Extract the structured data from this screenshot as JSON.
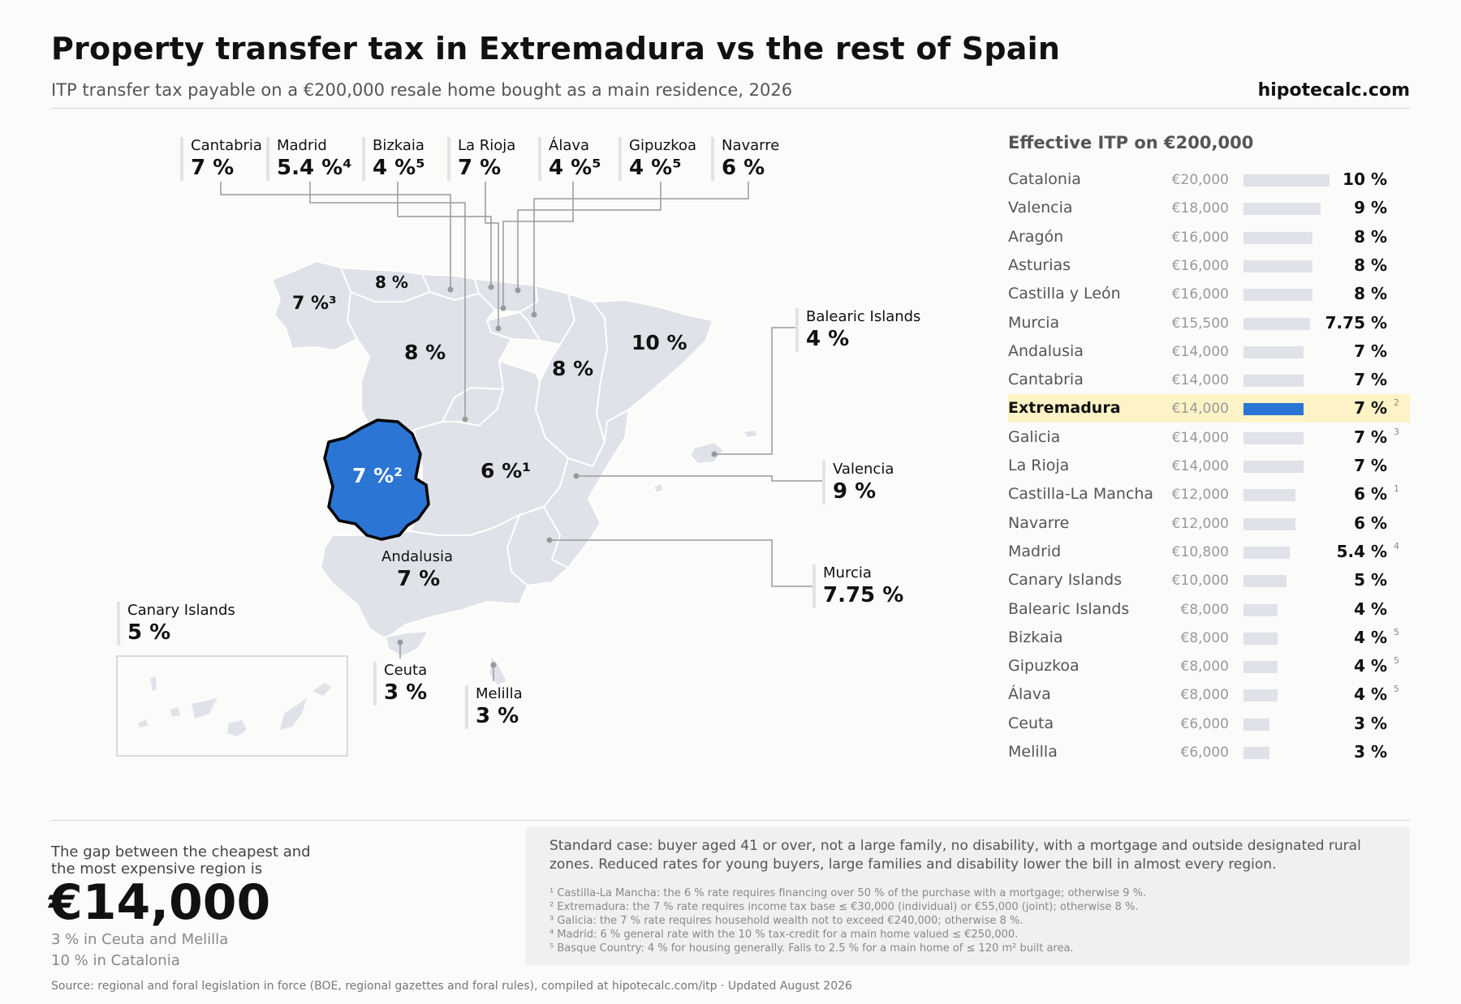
{
  "title": "Property transfer tax in Extremadura vs the rest of Spain",
  "subtitle": "ITP transfer tax payable on a €200,000 resale home bought as a main residence, 2026",
  "brand": "hipotecalc.com",
  "colors": {
    "highlight": "#2b75d4",
    "region": "#dfe2e8",
    "highlight_row": "#fdf3c6"
  },
  "map": {
    "callouts": [
      {
        "name": "Cantabria",
        "value": "7 %"
      },
      {
        "name": "Madrid",
        "value": "5.4 %⁴"
      },
      {
        "name": "Bizkaia",
        "value": "4 %⁵"
      },
      {
        "name": "La Rioja",
        "value": "7 %"
      },
      {
        "name": "Álava",
        "value": "4 %⁵"
      },
      {
        "name": "Gipuzkoa",
        "value": "4 %⁵"
      },
      {
        "name": "Navarre",
        "value": "6 %"
      },
      {
        "name": "Balearic Islands",
        "value": "4 %"
      },
      {
        "name": "Valencia",
        "value": "9 %"
      },
      {
        "name": "Murcia",
        "value": "7.75 %"
      },
      {
        "name": "Andalusia",
        "value": "7 %"
      },
      {
        "name": "Canary Islands",
        "value": "5 %"
      },
      {
        "name": "Ceuta",
        "value": "3 %"
      },
      {
        "name": "Melilla",
        "value": "3 %"
      }
    ],
    "in_map_labels": {
      "asturias": "8 %",
      "galicia": "7 %³",
      "castilla_leon": "8 %",
      "aragon": "8 %",
      "catalonia": "10 %",
      "castilla_la_mancha": "6 %¹",
      "extremadura": "7 %²"
    }
  },
  "ranking": {
    "title": "Effective ITP on €200,000",
    "rows": [
      {
        "region": "Catalonia",
        "amount": "€20,000",
        "rate": "10 %",
        "note": ""
      },
      {
        "region": "Valencia",
        "amount": "€18,000",
        "rate": "9 %",
        "note": ""
      },
      {
        "region": "Aragón",
        "amount": "€16,000",
        "rate": "8 %",
        "note": ""
      },
      {
        "region": "Asturias",
        "amount": "€16,000",
        "rate": "8 %",
        "note": ""
      },
      {
        "region": "Castilla y León",
        "amount": "€16,000",
        "rate": "8 %",
        "note": ""
      },
      {
        "region": "Murcia",
        "amount": "€15,500",
        "rate": "7.75 %",
        "note": ""
      },
      {
        "region": "Andalusia",
        "amount": "€14,000",
        "rate": "7 %",
        "note": ""
      },
      {
        "region": "Cantabria",
        "amount": "€14,000",
        "rate": "7 %",
        "note": ""
      },
      {
        "region": "Extremadura",
        "amount": "€14,000",
        "rate": "7 %",
        "note": "2"
      },
      {
        "region": "Galicia",
        "amount": "€14,000",
        "rate": "7 %",
        "note": "3"
      },
      {
        "region": "La Rioja",
        "amount": "€14,000",
        "rate": "7 %",
        "note": ""
      },
      {
        "region": "Castilla-La Mancha",
        "amount": "€12,000",
        "rate": "6 %",
        "note": "1"
      },
      {
        "region": "Navarre",
        "amount": "€12,000",
        "rate": "6 %",
        "note": ""
      },
      {
        "region": "Madrid",
        "amount": "€10,800",
        "rate": "5.4 %",
        "note": "4"
      },
      {
        "region": "Canary Islands",
        "amount": "€10,000",
        "rate": "5 %",
        "note": ""
      },
      {
        "region": "Balearic Islands",
        "amount": "€8,000",
        "rate": "4 %",
        "note": ""
      },
      {
        "region": "Bizkaia",
        "amount": "€8,000",
        "rate": "4 %",
        "note": "5"
      },
      {
        "region": "Gipuzkoa",
        "amount": "€8,000",
        "rate": "4 %",
        "note": "5"
      },
      {
        "region": "Álava",
        "amount": "€8,000",
        "rate": "4 %",
        "note": "5"
      },
      {
        "region": "Ceuta",
        "amount": "€6,000",
        "rate": "3 %",
        "note": ""
      },
      {
        "region": "Melilla",
        "amount": "€6,000",
        "rate": "3 %",
        "note": ""
      }
    ]
  },
  "chart_data": {
    "type": "bar",
    "title": "Effective ITP on €200,000",
    "highlight": "Extremadura",
    "categories": [
      "Catalonia",
      "Valencia",
      "Aragón",
      "Asturias",
      "Castilla y León",
      "Murcia",
      "Andalusia",
      "Cantabria",
      "Extremadura",
      "Galicia",
      "La Rioja",
      "Castilla-La Mancha",
      "Navarre",
      "Madrid",
      "Canary Islands",
      "Balearic Islands",
      "Bizkaia",
      "Gipuzkoa",
      "Álava",
      "Ceuta",
      "Melilla"
    ],
    "values": [
      20000,
      18000,
      16000,
      16000,
      16000,
      15500,
      14000,
      14000,
      14000,
      14000,
      14000,
      12000,
      12000,
      10800,
      10000,
      8000,
      8000,
      8000,
      8000,
      6000,
      6000
    ],
    "rates": [
      10,
      9,
      8,
      8,
      8,
      7.75,
      7,
      7,
      7,
      7,
      7,
      6,
      6,
      5.4,
      5,
      4,
      4,
      4,
      4,
      3,
      3
    ],
    "orientation": "horizontal"
  },
  "summary": {
    "gap_label": "The gap between the cheapest and the most expensive region is",
    "gap_value": "€14,000",
    "low": "3 % in Ceuta and Melilla",
    "high": "10 % in Catalonia"
  },
  "notes": {
    "main": "Standard case: buyer aged 41 or over, not a large family, no disability, with a mortgage and outside designated rural zones. Reduced rates for young buyers, large families and disability lower the bill in almost every region.",
    "footnotes": [
      "¹ Castilla-La Mancha: the 6 % rate requires financing over 50 % of the purchase with a mortgage; otherwise 9 %.",
      "² Extremadura: the 7 % rate requires income tax base ≤ €30,000 (individual) or €55,000 (joint); otherwise 8 %.",
      "³ Galicia: the 7 % rate requires household wealth not to exceed €240,000; otherwise 8 %.",
      "⁴ Madrid: 6 % general rate with the 10 % tax-credit for a main home valued ≤ €250,000.",
      "⁵ Basque Country: 4 % for housing generally. Falls to 2.5 % for a main home of ≤ 120 m² built area."
    ]
  },
  "source": "Source: regional and foral legislation in force (BOE, regional gazettes and foral rules), compiled at hipotecalc.com/itp · Updated August 2026"
}
